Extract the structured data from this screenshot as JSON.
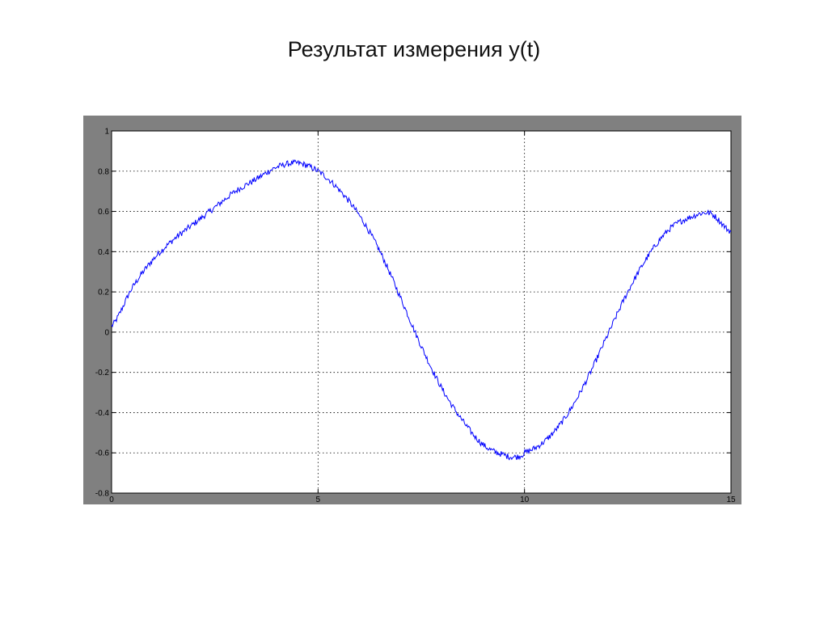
{
  "slide": {
    "title": "Результат измерения y(t)"
  },
  "chart_data": {
    "type": "line",
    "title": "",
    "xlabel": "",
    "ylabel": "",
    "xlim": [
      0,
      15
    ],
    "ylim": [
      -0.8,
      1
    ],
    "grid": true,
    "x_ticks": [
      0,
      5,
      10,
      15
    ],
    "x_tick_labels": [
      "0",
      "5",
      "10",
      "15"
    ],
    "y_ticks": [
      -0.8,
      -0.6,
      -0.4,
      -0.2,
      0,
      0.2,
      0.4,
      0.6,
      0.8,
      1
    ],
    "y_tick_labels": [
      "-0.8",
      "-0.6",
      "-0.4",
      "-0.2",
      "0",
      "0.2",
      "0.4",
      "0.6",
      "0.8",
      "1"
    ],
    "series": [
      {
        "name": "",
        "color": "#0000ff",
        "noise_amplitude": 0.015,
        "x": [
          0,
          0.5,
          1,
          1.5,
          2,
          2.5,
          3,
          3.5,
          4,
          4.5,
          5,
          5.5,
          6,
          6.5,
          7,
          7.5,
          8,
          8.5,
          9,
          9.5,
          9.8,
          10,
          10.5,
          11,
          11.5,
          12,
          12.5,
          13,
          13.5,
          14,
          14.5,
          15
        ],
        "y": [
          0.03,
          0.22,
          0.36,
          0.46,
          0.54,
          0.62,
          0.7,
          0.76,
          0.82,
          0.84,
          0.8,
          0.71,
          0.58,
          0.4,
          0.17,
          -0.07,
          -0.28,
          -0.44,
          -0.56,
          -0.61,
          -0.62,
          -0.6,
          -0.54,
          -0.42,
          -0.24,
          -0.02,
          0.2,
          0.38,
          0.51,
          0.57,
          0.59,
          0.5
        ]
      }
    ]
  },
  "colors": {
    "frame": "#808080",
    "axes_background": "#ffffff",
    "grid": "#000000",
    "line": "#0000ff"
  }
}
